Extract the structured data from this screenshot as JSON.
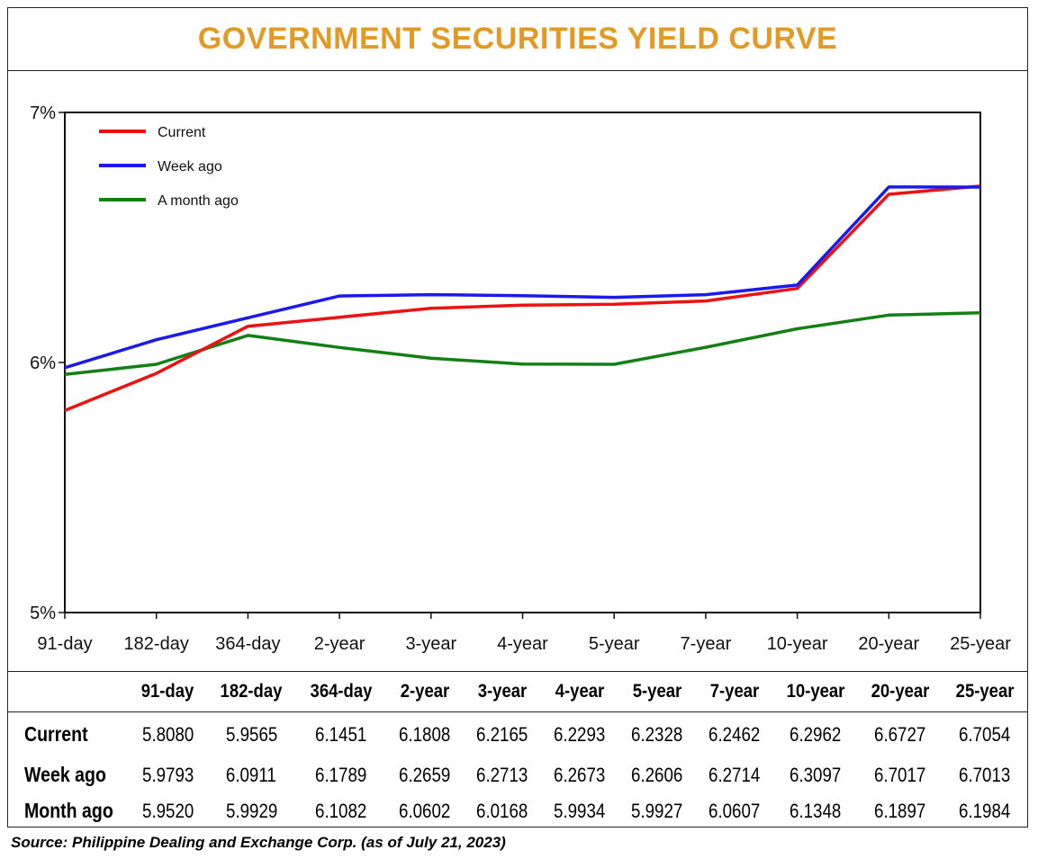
{
  "title": "GOVERNMENT SECURITIES YIELD CURVE",
  "title_color": "#e39a25",
  "source": "Source: Philippine Dealing and Exchange Corp. (as of July 21, 2023)",
  "table": {
    "columns": [
      "91-day",
      "182-day",
      "364-day",
      "2-year",
      "3-year",
      "4-year",
      "5-year",
      "7-year",
      "10-year",
      "20-year",
      "25-year"
    ],
    "rows": [
      {
        "label": "Current",
        "values": [
          "5.8080",
          "5.9565",
          "6.1451",
          "6.1808",
          "6.2165",
          "6.2293",
          "6.2328",
          "6.2462",
          "6.2962",
          "6.6727",
          "6.7054"
        ]
      },
      {
        "label": "Week ago",
        "values": [
          "5.9793",
          "6.0911",
          "6.1789",
          "6.2659",
          "6.2713",
          "6.2673",
          "6.2606",
          "6.2714",
          "6.3097",
          "6.7017",
          "6.7013"
        ]
      },
      {
        "label": "Month ago",
        "values": [
          "5.9520",
          "5.9929",
          "6.1082",
          "6.0602",
          "6.0168",
          "5.9934",
          "5.9927",
          "6.0607",
          "6.1348",
          "6.1897",
          "6.1984"
        ]
      }
    ]
  },
  "chart_data": {
    "type": "line",
    "title": "GOVERNMENT SECURITIES YIELD CURVE",
    "categories": [
      "91-day",
      "182-day",
      "364-day",
      "2-year",
      "3-year",
      "4-year",
      "5-year",
      "7-year",
      "10-year",
      "20-year",
      "25-year"
    ],
    "ylim": [
      5,
      7
    ],
    "yticks": [
      5,
      6,
      7
    ],
    "ytick_labels": [
      "5%",
      "6%",
      "7%"
    ],
    "grid": false,
    "legend_position": "top-left",
    "series": [
      {
        "name": "Current",
        "color": "#ee1111",
        "values": [
          5.808,
          5.9565,
          6.1451,
          6.1808,
          6.2165,
          6.2293,
          6.2328,
          6.2462,
          6.2962,
          6.6727,
          6.7054
        ]
      },
      {
        "name": "Week ago",
        "color": "#1a1aee",
        "values": [
          5.9793,
          6.0911,
          6.1789,
          6.2659,
          6.2713,
          6.2673,
          6.2606,
          6.2714,
          6.3097,
          6.7017,
          6.7013
        ]
      },
      {
        "name": "A month ago",
        "color": "#138013",
        "values": [
          5.952,
          5.9929,
          6.1082,
          6.0602,
          6.0168,
          5.9934,
          5.9927,
          6.0607,
          6.1348,
          6.1897,
          6.1984
        ]
      }
    ]
  }
}
